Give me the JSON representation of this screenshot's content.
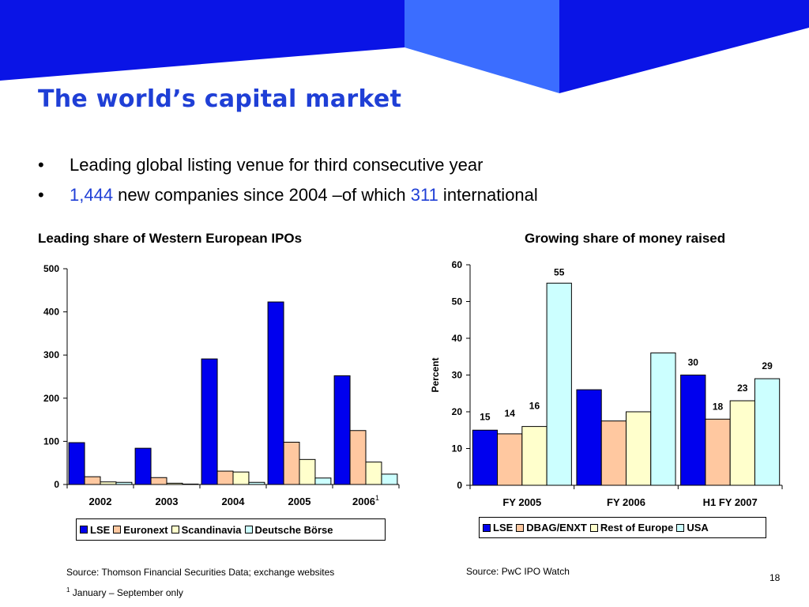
{
  "slide": {
    "title": "The world’s capital market",
    "bullets": [
      {
        "marker": "•",
        "parts": [
          {
            "text": "Leading global listing venue for third consecutive year"
          }
        ]
      },
      {
        "marker": "•",
        "parts": [
          {
            "text": "1,444",
            "highlight": true
          },
          {
            "text": " new companies since 2004 –of which "
          },
          {
            "text": "311",
            "highlight": true
          },
          {
            "text": " international"
          }
        ]
      }
    ],
    "source_left": "Source: Thomson Financial Securities Data; exchange websites",
    "source_right": "Source: PwC IPO Watch",
    "footnote_mark": "1",
    "footnote_text": " January – September only",
    "page_number": "18",
    "colors": {
      "banner": "#0a14e6",
      "banner_light": "#3b6dff",
      "title": "#1f3fd6"
    }
  },
  "chart_data": [
    {
      "type": "bar",
      "title": "Leading share of Western European IPOs",
      "categories": [
        "2002",
        "2003",
        "2004",
        "2005",
        "2006"
      ],
      "category_notes": [
        "",
        "",
        "",
        "",
        "1"
      ],
      "series": [
        {
          "name": "LSE",
          "color": "#0000ee",
          "values": [
            97,
            84,
            291,
            423,
            252
          ]
        },
        {
          "name": "Euronext",
          "color": "#ffc8a0",
          "values": [
            18,
            16,
            31,
            98,
            125
          ]
        },
        {
          "name": "Scandinavia",
          "color": "#ffffcc",
          "values": [
            6,
            3,
            29,
            58,
            52
          ]
        },
        {
          "name": "Deutsche Börse",
          "color": "#ccffff",
          "values": [
            5,
            1,
            5,
            15,
            24
          ]
        }
      ],
      "ylim": [
        0,
        500
      ],
      "yticks": [
        0,
        100,
        200,
        300,
        400,
        500
      ],
      "ylabel": "",
      "xlabel": "",
      "grid": false,
      "legend": "bottom"
    },
    {
      "type": "bar",
      "title": "Growing share of money raised",
      "categories": [
        "FY 2005",
        "FY 2006",
        "H1 FY 2007"
      ],
      "series": [
        {
          "name": "LSE",
          "color": "#0000ee",
          "values": [
            15,
            26,
            30
          ]
        },
        {
          "name": "DBAG/ENXT",
          "color": "#ffc8a0",
          "values": [
            14,
            17.5,
            18
          ]
        },
        {
          "name": "Rest of Europe",
          "color": "#ffffcc",
          "values": [
            16,
            20,
            23
          ]
        },
        {
          "name": "USA",
          "color": "#ccffff",
          "values": [
            55,
            36,
            29
          ]
        }
      ],
      "data_labels": [
        [
          "15",
          "14",
          "16",
          "55"
        ],
        [
          "",
          "",
          "",
          ""
        ],
        [
          "30",
          "18",
          "23",
          "29"
        ]
      ],
      "ylim": [
        0,
        60
      ],
      "yticks": [
        0,
        10,
        20,
        30,
        40,
        50,
        60
      ],
      "ylabel": "Percent",
      "xlabel": "",
      "grid": false,
      "legend": "bottom"
    }
  ]
}
